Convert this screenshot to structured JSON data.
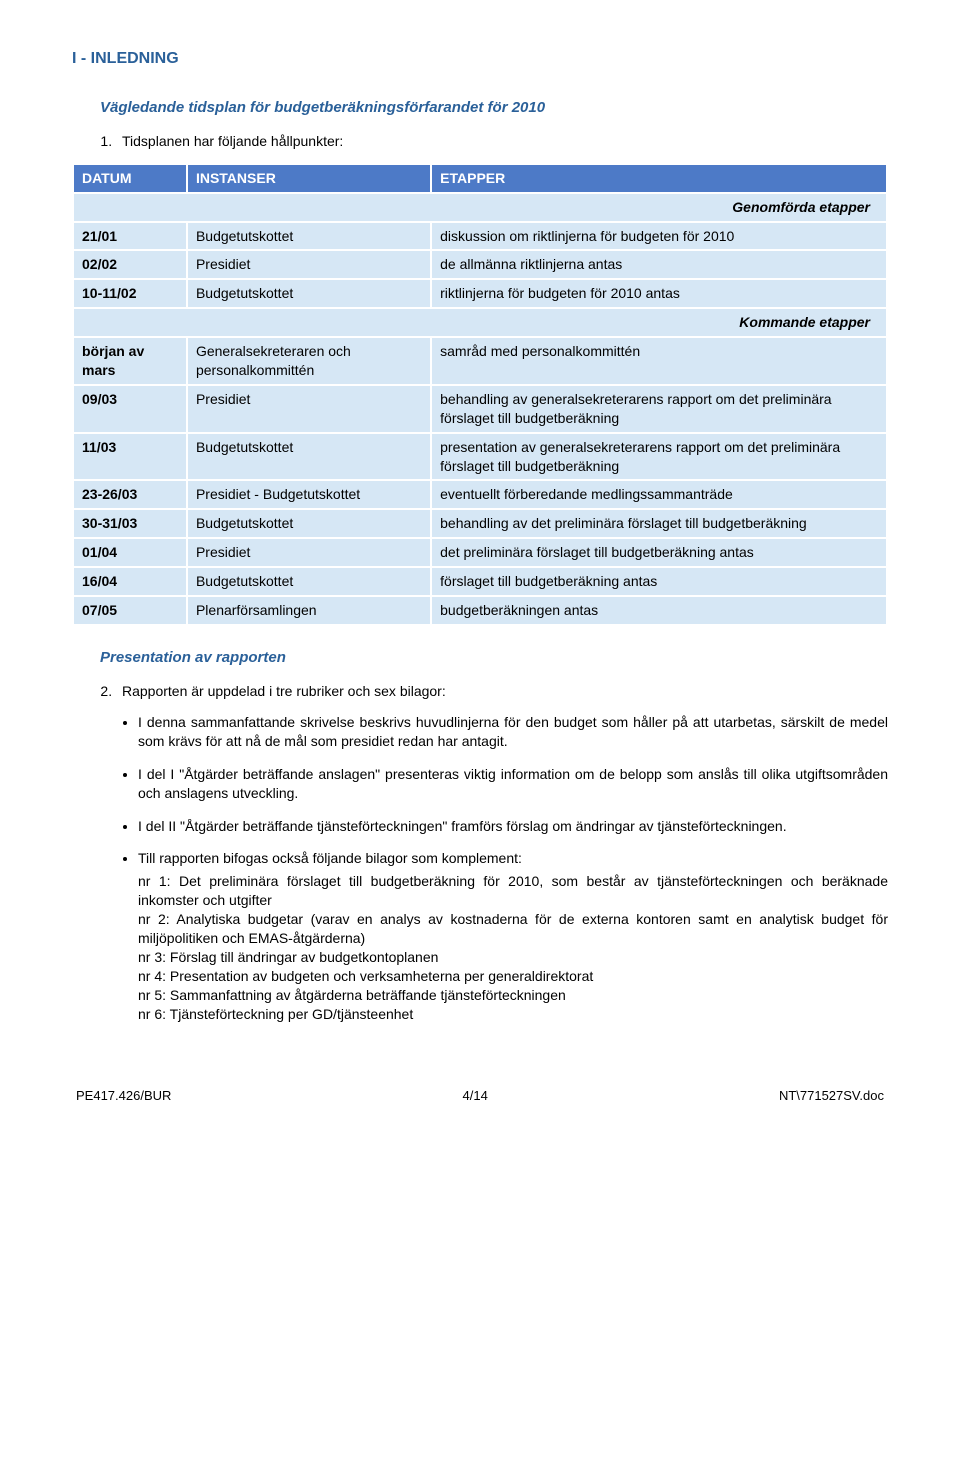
{
  "colors": {
    "heading": "#2a6099",
    "table_header_bg": "#4d7ac7",
    "table_header_fg": "#ffffff",
    "table_cell_bg": "#d6e7f5",
    "page_bg": "#ffffff",
    "text": "#000000"
  },
  "heading1": "I - INLEDNING",
  "heading2a": "Vägledande tidsplan för budgetberäkningsförfarandet för 2010",
  "intro_item": "Tidsplanen har följande hållpunkter:",
  "table": {
    "headers": [
      "DATUM",
      "INSTANSER",
      "ETAPPER"
    ],
    "subhead1": "Genomförda etapper",
    "subhead2": "Kommande etapper",
    "group1": [
      {
        "c1": "21/01",
        "c2": "Budgetutskottet",
        "c3": "diskussion om riktlinjerna för budgeten för 2010"
      },
      {
        "c1": "02/02",
        "c2": "Presidiet",
        "c3": "de allmänna riktlinjerna antas"
      },
      {
        "c1": "10-11/02",
        "c2": "Budgetutskottet",
        "c3": "riktlinjerna för budgeten för 2010 antas"
      }
    ],
    "group2": [
      {
        "c1": "början av mars",
        "c2": "Generalsekreteraren och personalkommittén",
        "c3": "samråd med personalkommittén"
      },
      {
        "c1": "09/03",
        "c2": "Presidiet",
        "c3": "behandling av generalsekreterarens rapport om det preliminära förslaget till budgetberäkning"
      },
      {
        "c1": "11/03",
        "c2": "Budgetutskottet",
        "c3": "presentation av generalsekreterarens rapport om det preliminära förslaget till budgetberäkning"
      },
      {
        "c1": "23-26/03",
        "c2": "Presidiet - Budgetutskottet",
        "c3": "eventuellt förberedande medlingssammanträde"
      },
      {
        "c1": "30-31/03",
        "c2": "Budgetutskottet",
        "c3": "behandling av det preliminära förslaget till budgetberäkning"
      },
      {
        "c1": "01/04",
        "c2": "Presidiet",
        "c3": "det preliminära förslaget till budgetberäkning antas"
      },
      {
        "c1": "16/04",
        "c2": "Budgetutskottet",
        "c3": "förslaget till budgetberäkning antas"
      },
      {
        "c1": "07/05",
        "c2": "Plenarförsamlingen",
        "c3": "budgetberäkningen antas"
      }
    ]
  },
  "heading2b": "Presentation av rapporten",
  "ol2_item": "Rapporten är uppdelad i tre rubriker och sex bilagor:",
  "bullets": [
    {
      "text": "I denna sammanfattande skrivelse beskrivs huvudlinjerna för den budget som håller på att utarbetas, särskilt de medel som krävs för att nå de mål som presidiet redan har antagit."
    },
    {
      "text": "I del I \"Åtgärder beträffande anslagen\" presenteras viktig information om de belopp som anslås till olika utgiftsområden och anslagens utveckling."
    },
    {
      "text": "I del II \"Åtgärder beträffande tjänsteförteckningen\" framförs förslag om ändringar av tjänsteförteckningen."
    },
    {
      "text": "Till rapporten bifogas också följande bilagor som komplement:",
      "subs": [
        "nr 1: Det preliminära förslaget till budgetberäkning för 2010, som består av tjänsteförteckningen och beräknade inkomster och utgifter",
        "nr 2: Analytiska budgetar (varav en analys av kostnaderna för de externa kontoren samt en analytisk budget för miljöpolitiken och EMAS-åtgärderna)",
        "nr 3: Förslag till ändringar av budgetkontoplanen",
        "nr 4: Presentation av budgeten och verksamheterna per generaldirektorat",
        "nr 5: Sammanfattning av åtgärderna beträffande tjänsteförteckningen",
        "nr 6: Tjänsteförteckning per GD/tjänsteenhet"
      ]
    }
  ],
  "footer": {
    "left": "PE417.426/BUR",
    "center": "4/14",
    "right": "NT\\771527SV.doc"
  }
}
